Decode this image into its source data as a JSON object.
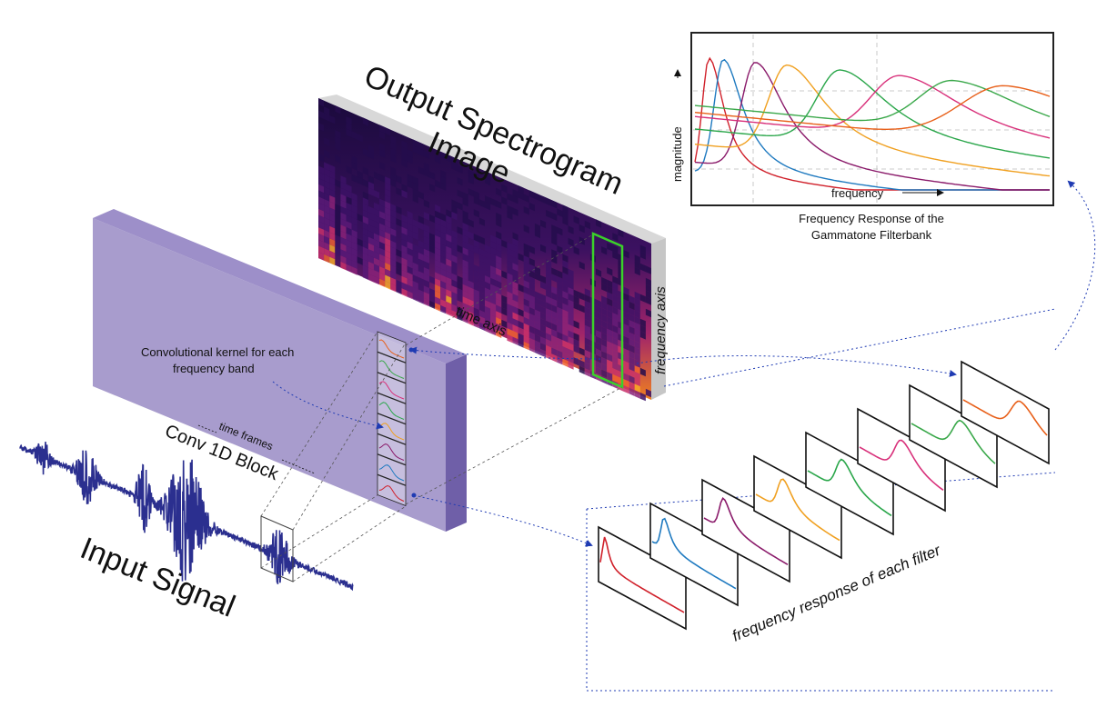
{
  "labels": {
    "spectrogram_title_line1": "Output Spectrogram",
    "spectrogram_title_line2": "Image",
    "time_axis": "time axis",
    "frequency_axis": "frequency axis",
    "conv_block": "Conv 1D Block",
    "time_frames": "time frames",
    "kernel_caption_line1": "Convolutional kernel for each",
    "kernel_caption_line2": "frequency band",
    "input_signal": "Input Signal",
    "filter_response": "frequency response of each filter",
    "chart_caption_line1": "Frequency Response of the",
    "chart_caption_line2": "Gammatone Filterbank"
  },
  "colors": {
    "conv_block": "#8a7ab8",
    "signal": "#2b2f8f",
    "connector": "#1f3bb3",
    "highlight": "#3bd12a",
    "filters": [
      "#d0202a",
      "#1f7ac0",
      "#8a1a6a",
      "#f0a020",
      "#2aa64a",
      "#d8307a",
      "#3aa84a",
      "#e8601a"
    ]
  },
  "chart_data": {
    "type": "line",
    "title": "",
    "xlabel": "frequency",
    "ylabel": "magnitude",
    "series": [
      {
        "color": "#d0202a",
        "peak": 0.04,
        "width": 0.03,
        "floor": 0.12
      },
      {
        "color": "#1f7ac0",
        "peak": 0.08,
        "width": 0.04,
        "floor": 0.15
      },
      {
        "color": "#8a1a6a",
        "peak": 0.17,
        "width": 0.06,
        "floor": 0.22
      },
      {
        "color": "#f0a020",
        "peak": 0.26,
        "width": 0.08,
        "floor": 0.35
      },
      {
        "color": "#2aa64a",
        "peak": 0.41,
        "width": 0.1,
        "floor": 0.46
      },
      {
        "color": "#d8307a",
        "peak": 0.58,
        "width": 0.13,
        "floor": 0.55
      },
      {
        "color": "#3aa84a",
        "peak": 0.73,
        "width": 0.15,
        "floor": 0.63
      },
      {
        "color": "#e8601a",
        "peak": 0.88,
        "width": 0.2,
        "floor": 0.58
      }
    ]
  }
}
